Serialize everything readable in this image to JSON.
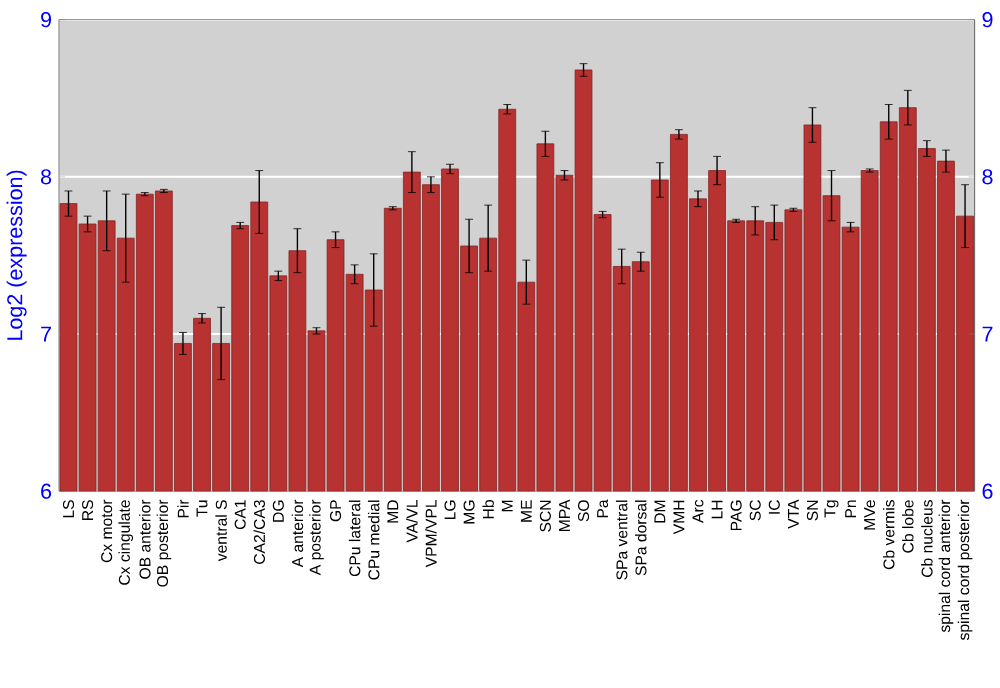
{
  "chart_data": {
    "type": "bar",
    "ylabel": "Log2 (expression)",
    "categories": [
      "LS",
      "RS",
      "Cx motor",
      "Cx cingulate",
      "OB anterior",
      "OB posterior",
      "Pir",
      "Tu",
      "ventral S",
      "CA1",
      "CA2/CA3",
      "DG",
      "A anterior",
      "A posterior",
      "GP",
      "CPu lateral",
      "CPu medial",
      "MD",
      "VA/VL",
      "VPM/VPL",
      "LG",
      "MG",
      "Hb",
      "M",
      "ME",
      "SCN",
      "MPA",
      "SO",
      "Pa",
      "SPa ventral",
      "SPa dorsal",
      "DM",
      "VMH",
      "Arc",
      "LH",
      "PAG",
      "SC",
      "IC",
      "VTA",
      "SN",
      "Tg",
      "Pn",
      "MVe",
      "Cb vermis",
      "Cb lobe",
      "Cb nucleus",
      "spinal cord anterior",
      "spinal cord posterior"
    ],
    "values": [
      7.83,
      7.7,
      7.72,
      7.61,
      7.89,
      7.91,
      6.94,
      7.1,
      6.94,
      7.69,
      7.84,
      7.37,
      7.53,
      7.02,
      7.6,
      7.38,
      7.28,
      7.8,
      8.03,
      7.95,
      8.05,
      7.56,
      7.61,
      8.43,
      7.33,
      8.21,
      8.01,
      8.68,
      7.76,
      7.43,
      7.46,
      7.98,
      8.27,
      7.86,
      8.04,
      7.72,
      7.72,
      7.71,
      7.79,
      8.33,
      7.88,
      7.68,
      8.04,
      8.35,
      8.44,
      8.18,
      8.1,
      7.75
    ],
    "errors": [
      0.08,
      0.05,
      0.19,
      0.28,
      0.01,
      0.01,
      0.07,
      0.03,
      0.23,
      0.02,
      0.2,
      0.03,
      0.14,
      0.02,
      0.05,
      0.06,
      0.23,
      0.01,
      0.13,
      0.05,
      0.03,
      0.17,
      0.21,
      0.03,
      0.14,
      0.08,
      0.03,
      0.04,
      0.02,
      0.11,
      0.06,
      0.11,
      0.03,
      0.05,
      0.09,
      0.01,
      0.09,
      0.11,
      0.01,
      0.11,
      0.16,
      0.03,
      0.01,
      0.11,
      0.11,
      0.05,
      0.07,
      0.2
    ],
    "color": "#b83232",
    "ylim": [
      6,
      9
    ],
    "yticks": [
      6,
      7,
      8,
      9
    ],
    "y2lim": [
      6,
      9
    ],
    "y2ticks": [
      6,
      7,
      8,
      9
    ],
    "grid": "y"
  }
}
